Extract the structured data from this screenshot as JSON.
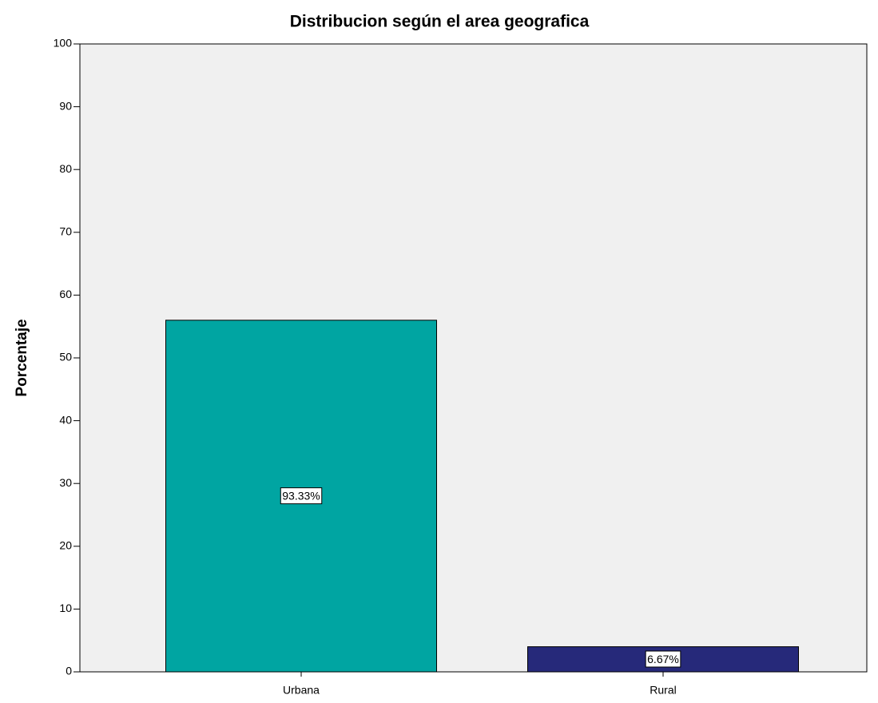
{
  "chart_data": {
    "type": "bar",
    "title": "Distribucion según el area geografica",
    "ylabel": "Porcentaje",
    "categories": [
      "Urbana",
      "Rural"
    ],
    "values": [
      56,
      4
    ],
    "annotations": [
      "93.33%",
      "6.67%"
    ],
    "colors": [
      "#00a5a2",
      "#26297a"
    ],
    "ylim": [
      0,
      100
    ],
    "yticks": [
      0,
      10,
      20,
      30,
      40,
      50,
      60,
      70,
      80,
      90,
      100
    ],
    "grid": false
  }
}
